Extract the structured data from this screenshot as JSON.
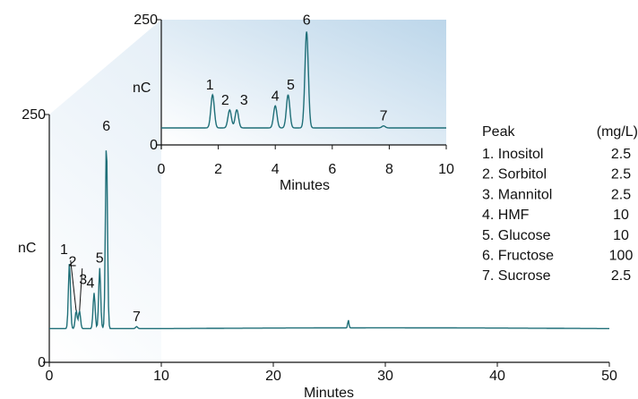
{
  "colors": {
    "trace": "#1f6f78",
    "inset_bg_light": "#ffffff",
    "inset_bg_dark": "#bcd6ea",
    "axis": "#111111"
  },
  "chart_data": [
    {
      "type": "line",
      "panel": "main",
      "xlabel": "Minutes",
      "ylabel": "nC",
      "xlim": [
        0,
        50
      ],
      "ylim": [
        0,
        250
      ],
      "xticks": [
        "0",
        "10",
        "20",
        "30",
        "40",
        "50"
      ],
      "yticks": [
        "0",
        "250"
      ],
      "baseline": 34,
      "peaks": [
        {
          "label": "1",
          "x": 1.8,
          "height": 100
        },
        {
          "label": "2",
          "x": 2.4,
          "height": 52
        },
        {
          "label": "3",
          "x": 2.7,
          "height": 52
        },
        {
          "label": "4",
          "x": 4.0,
          "height": 70
        },
        {
          "label": "5",
          "x": 4.5,
          "height": 95
        },
        {
          "label": "6",
          "x": 5.1,
          "height": 223
        },
        {
          "label": "7",
          "x": 7.8,
          "height": 36
        }
      ],
      "artifact": {
        "x": 26.7,
        "height": 42
      }
    },
    {
      "type": "line",
      "panel": "inset",
      "xlabel": "Minutes",
      "ylabel": "nC",
      "xlim": [
        0,
        10
      ],
      "ylim": [
        0,
        250
      ],
      "xticks": [
        "0",
        "2",
        "4",
        "6",
        "8",
        "10"
      ],
      "yticks": [
        "0",
        "250"
      ],
      "baseline": 34,
      "peaks": [
        {
          "label": "1",
          "x": 1.8,
          "height": 100
        },
        {
          "label": "2",
          "x": 2.4,
          "height": 70
        },
        {
          "label": "3",
          "x": 2.65,
          "height": 70
        },
        {
          "label": "4",
          "x": 4.0,
          "height": 78
        },
        {
          "label": "5",
          "x": 4.45,
          "height": 100
        },
        {
          "label": "6",
          "x": 5.1,
          "height": 226
        },
        {
          "label": "7",
          "x": 7.8,
          "height": 38
        }
      ]
    }
  ],
  "table": {
    "header_peak": "Peak",
    "header_units": "(mg/L)",
    "rows": [
      {
        "name": "1. Inositol",
        "value": "2.5"
      },
      {
        "name": "2. Sorbitol",
        "value": "2.5"
      },
      {
        "name": "3. Mannitol",
        "value": "2.5"
      },
      {
        "name": "4. HMF",
        "value": "10"
      },
      {
        "name": "5. Glucose",
        "value": "10"
      },
      {
        "name": "6. Fructose",
        "value": "100"
      },
      {
        "name": "7. Sucrose",
        "value": "2.5"
      }
    ]
  }
}
